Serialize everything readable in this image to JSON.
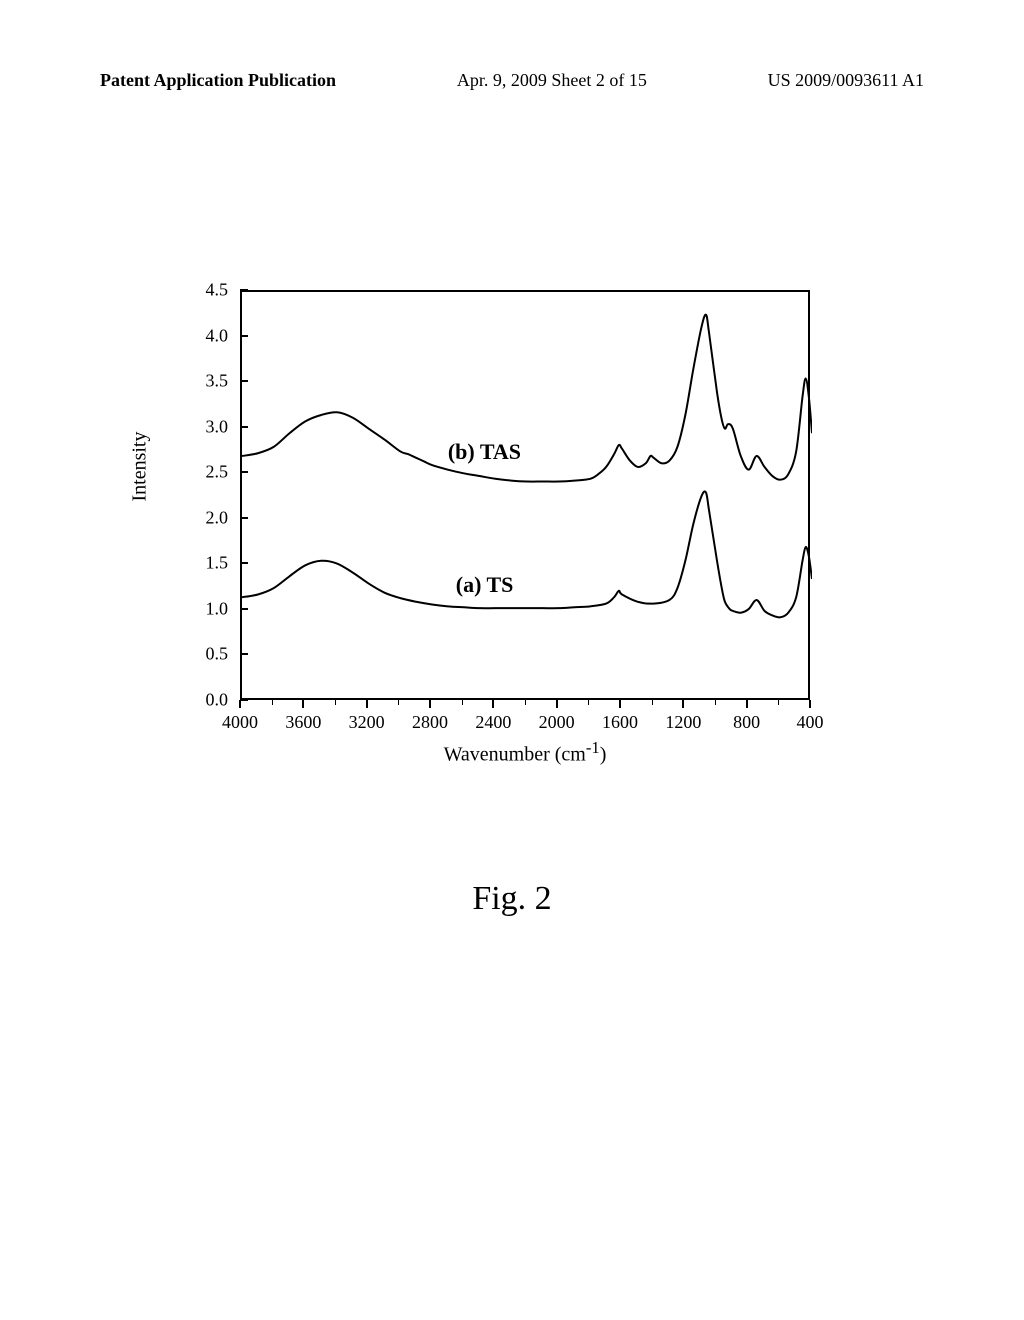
{
  "header": {
    "left": "Patent Application Publication",
    "center": "Apr. 9, 2009  Sheet 2 of 15",
    "right": "US 2009/0093611 A1"
  },
  "chart": {
    "type": "line",
    "y_axis": {
      "title": "Intensity",
      "min": 0.0,
      "max": 4.5,
      "ticks": [
        0.0,
        0.5,
        1.0,
        1.5,
        2.0,
        2.5,
        3.0,
        3.5,
        4.0,
        4.5
      ],
      "tick_labels": [
        "0.0",
        "0.5",
        "1.0",
        "1.5",
        "2.0",
        "2.5",
        "3.0",
        "3.5",
        "4.0",
        "4.5"
      ],
      "title_fontsize": 20,
      "label_fontsize": 18
    },
    "x_axis": {
      "title": "Wavenumber (cm",
      "title_sup": "-1",
      "title_close": ")",
      "min": 400,
      "max": 4000,
      "reversed": true,
      "ticks": [
        4000,
        3600,
        3200,
        2800,
        2400,
        2000,
        1600,
        1200,
        800,
        400
      ],
      "tick_labels": [
        "4000",
        "3600",
        "3200",
        "2800",
        "2400",
        "2000",
        "1600",
        "1200",
        "800",
        "400"
      ],
      "title_fontsize": 20,
      "label_fontsize": 18
    },
    "series": [
      {
        "name": "TS",
        "label": "(a) TS",
        "label_x": 2650,
        "label_y": 1.3,
        "color": "#000000",
        "line_width": 2,
        "points": [
          [
            4000,
            1.15
          ],
          [
            3900,
            1.18
          ],
          [
            3800,
            1.25
          ],
          [
            3700,
            1.38
          ],
          [
            3600,
            1.5
          ],
          [
            3500,
            1.55
          ],
          [
            3400,
            1.52
          ],
          [
            3300,
            1.42
          ],
          [
            3200,
            1.3
          ],
          [
            3100,
            1.2
          ],
          [
            3000,
            1.14
          ],
          [
            2900,
            1.1
          ],
          [
            2800,
            1.07
          ],
          [
            2700,
            1.05
          ],
          [
            2600,
            1.04
          ],
          [
            2500,
            1.03
          ],
          [
            2400,
            1.03
          ],
          [
            2300,
            1.03
          ],
          [
            2200,
            1.03
          ],
          [
            2100,
            1.03
          ],
          [
            2000,
            1.03
          ],
          [
            1900,
            1.04
          ],
          [
            1800,
            1.05
          ],
          [
            1700,
            1.08
          ],
          [
            1650,
            1.15
          ],
          [
            1620,
            1.22
          ],
          [
            1600,
            1.18
          ],
          [
            1500,
            1.1
          ],
          [
            1400,
            1.08
          ],
          [
            1300,
            1.12
          ],
          [
            1250,
            1.25
          ],
          [
            1200,
            1.55
          ],
          [
            1150,
            1.95
          ],
          [
            1100,
            2.25
          ],
          [
            1070,
            2.3
          ],
          [
            1050,
            2.1
          ],
          [
            1000,
            1.55
          ],
          [
            970,
            1.25
          ],
          [
            950,
            1.1
          ],
          [
            920,
            1.02
          ],
          [
            900,
            1.0
          ],
          [
            850,
            0.98
          ],
          [
            800,
            1.02
          ],
          [
            750,
            1.12
          ],
          [
            700,
            1.0
          ],
          [
            650,
            0.95
          ],
          [
            600,
            0.93
          ],
          [
            550,
            0.98
          ],
          [
            500,
            1.15
          ],
          [
            460,
            1.55
          ],
          [
            440,
            1.7
          ],
          [
            420,
            1.6
          ],
          [
            400,
            1.35
          ]
        ]
      },
      {
        "name": "TAS",
        "label": "(b) TAS",
        "label_x": 2700,
        "label_y": 2.75,
        "color": "#000000",
        "line_width": 2,
        "points": [
          [
            4000,
            2.7
          ],
          [
            3900,
            2.73
          ],
          [
            3800,
            2.8
          ],
          [
            3700,
            2.95
          ],
          [
            3600,
            3.08
          ],
          [
            3500,
            3.15
          ],
          [
            3400,
            3.18
          ],
          [
            3300,
            3.12
          ],
          [
            3200,
            3.0
          ],
          [
            3100,
            2.88
          ],
          [
            3000,
            2.75
          ],
          [
            2950,
            2.72
          ],
          [
            2900,
            2.68
          ],
          [
            2850,
            2.64
          ],
          [
            2800,
            2.6
          ],
          [
            2700,
            2.55
          ],
          [
            2600,
            2.51
          ],
          [
            2500,
            2.48
          ],
          [
            2400,
            2.45
          ],
          [
            2300,
            2.43
          ],
          [
            2200,
            2.42
          ],
          [
            2100,
            2.42
          ],
          [
            2000,
            2.42
          ],
          [
            1900,
            2.43
          ],
          [
            1800,
            2.45
          ],
          [
            1750,
            2.5
          ],
          [
            1700,
            2.58
          ],
          [
            1650,
            2.72
          ],
          [
            1620,
            2.82
          ],
          [
            1600,
            2.78
          ],
          [
            1550,
            2.65
          ],
          [
            1500,
            2.58
          ],
          [
            1450,
            2.62
          ],
          [
            1420,
            2.7
          ],
          [
            1400,
            2.68
          ],
          [
            1350,
            2.62
          ],
          [
            1300,
            2.65
          ],
          [
            1250,
            2.8
          ],
          [
            1200,
            3.15
          ],
          [
            1150,
            3.65
          ],
          [
            1100,
            4.1
          ],
          [
            1070,
            4.25
          ],
          [
            1050,
            4.05
          ],
          [
            1000,
            3.4
          ],
          [
            970,
            3.1
          ],
          [
            950,
            3.0
          ],
          [
            930,
            3.05
          ],
          [
            900,
            3.0
          ],
          [
            850,
            2.7
          ],
          [
            800,
            2.55
          ],
          [
            750,
            2.7
          ],
          [
            700,
            2.58
          ],
          [
            650,
            2.48
          ],
          [
            600,
            2.44
          ],
          [
            550,
            2.5
          ],
          [
            500,
            2.75
          ],
          [
            460,
            3.35
          ],
          [
            440,
            3.55
          ],
          [
            420,
            3.35
          ],
          [
            400,
            2.95
          ]
        ]
      }
    ],
    "background_color": "#ffffff",
    "border_color": "#000000",
    "border_width": 2
  },
  "figure_caption": "Fig. 2"
}
